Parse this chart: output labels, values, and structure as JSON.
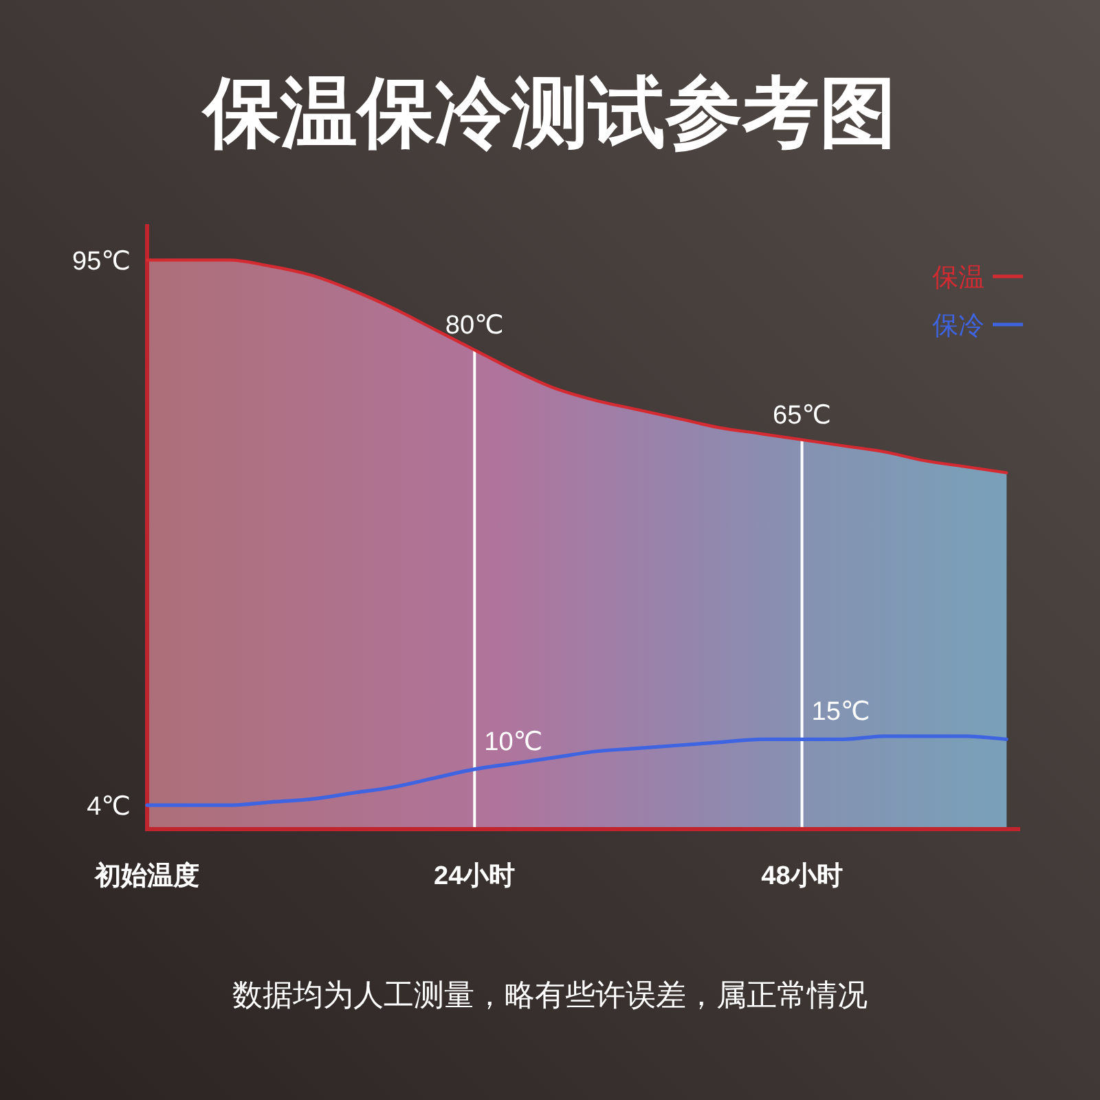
{
  "chart_data": {
    "type": "line",
    "title": "保温保冷测试参考图",
    "xlim": [
      0,
      64
    ],
    "xticks": [
      {
        "value": 0,
        "label": "初始温度"
      },
      {
        "value": 24,
        "label": "24小时"
      },
      {
        "value": 48,
        "label": "48小时"
      }
    ],
    "ylim": [
      0,
      101
    ],
    "yticks": [
      {
        "value": 95,
        "label": "95℃"
      },
      {
        "value": 4,
        "label": "4℃"
      }
    ],
    "x": [
      0,
      3,
      6,
      9,
      12,
      15,
      18,
      21,
      24,
      27,
      30,
      33,
      36,
      39,
      42,
      45,
      48,
      51,
      54,
      57,
      60,
      63
    ],
    "series": [
      {
        "name": "保温",
        "type": "area",
        "color": "#d42a32",
        "values": [
          95,
          95,
          95,
          94,
          92.5,
          90,
          87,
          83.5,
          80,
          76.5,
          73.5,
          71.5,
          70,
          68.5,
          67,
          66,
          65,
          64,
          63,
          61.5,
          60.5,
          59.5
        ],
        "value_labels": [
          null,
          null,
          null,
          null,
          null,
          null,
          null,
          null,
          "80℃",
          null,
          null,
          null,
          null,
          null,
          null,
          null,
          "65℃",
          null,
          null,
          null,
          null,
          null
        ]
      },
      {
        "name": "保冷",
        "type": "line",
        "color": "#3e64e2",
        "values": [
          4,
          4,
          4,
          4.5,
          5,
          6,
          7,
          8.5,
          10,
          11,
          12,
          13,
          13.5,
          14,
          14.5,
          15,
          15,
          15,
          15.5,
          15.5,
          15.5,
          15
        ],
        "value_labels": [
          null,
          null,
          null,
          null,
          null,
          null,
          null,
          null,
          "10℃",
          null,
          null,
          null,
          null,
          null,
          null,
          null,
          "15℃",
          null,
          null,
          null,
          null,
          null
        ]
      }
    ],
    "ref_lines": [
      {
        "axis": "x",
        "value": 24,
        "color": "#ffffff"
      },
      {
        "axis": "x",
        "value": 48,
        "color": "#ffffff"
      }
    ],
    "legend": "top right",
    "annotations": [
      "数据均为人工测量，略有些许误差，属正常情况"
    ]
  }
}
